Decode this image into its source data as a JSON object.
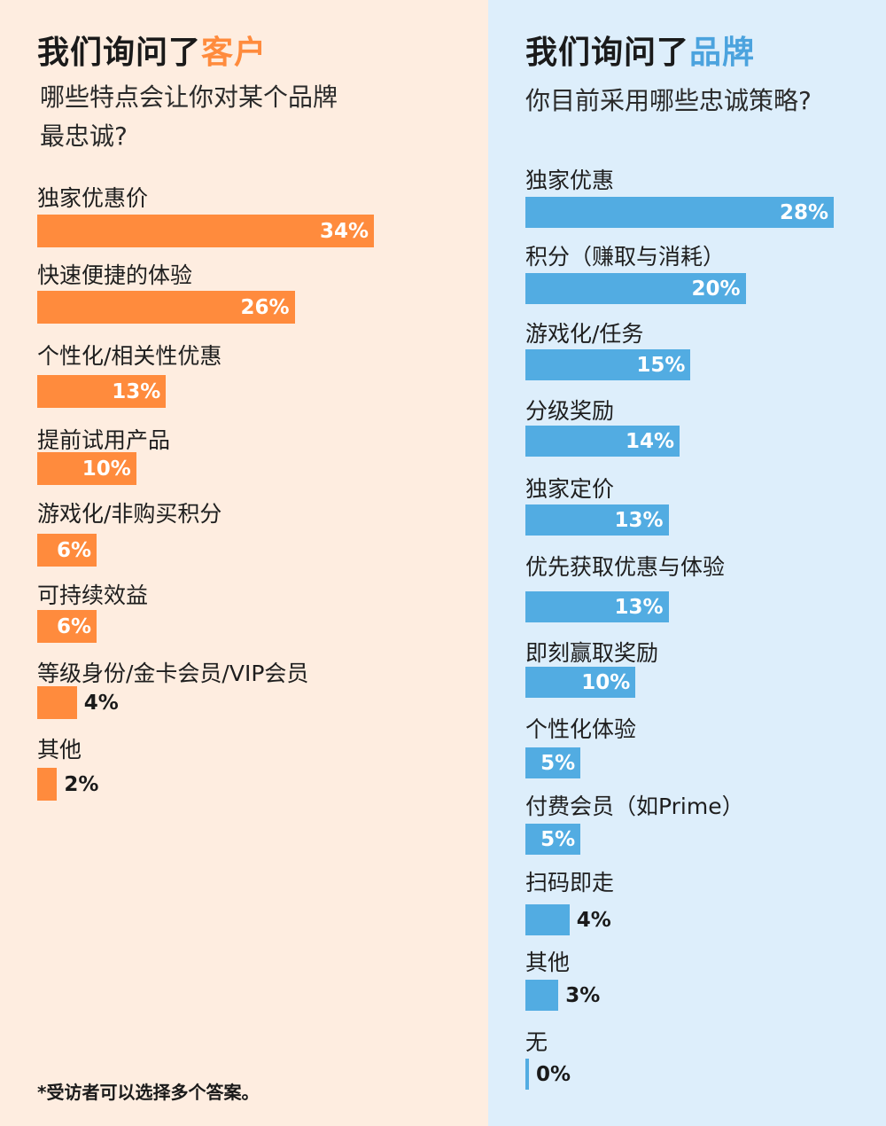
{
  "colors": {
    "left_bar": "#FF8B3D",
    "right_bar": "#52ACE2",
    "left_accent": "#FF8B3D",
    "right_accent": "#4BA3DE"
  },
  "left": {
    "title_main": "我们询问了",
    "title_accent": "客户",
    "subtitle_line1": "哪些特点会让你对某个品牌",
    "subtitle_line2": "最忠诚?"
  },
  "right": {
    "title_main": "我们询问了",
    "title_accent": "品牌",
    "subtitle_line1": "你目前采用哪些忠诚策略?"
  },
  "footnote": "*受访者可以选择多个答案。",
  "chart_data": [
    {
      "type": "bar",
      "orientation": "horizontal",
      "categories": [
        "独家优惠价",
        "快速便捷的体验",
        "个性化/相关性优惠",
        "提前试用产品",
        "游戏化/非购买积分",
        "可持续效益",
        "等级身份/金卡会员/VIP会员",
        "其他"
      ],
      "values": [
        34,
        26,
        13,
        10,
        6,
        6,
        4,
        2
      ],
      "value_labels": [
        "34%",
        "26%",
        "13%",
        "10%",
        "6%",
        "6%",
        "4%",
        "2%"
      ],
      "xlim": [
        0,
        34
      ],
      "grid": false
    },
    {
      "type": "bar",
      "orientation": "horizontal",
      "categories": [
        "独家优惠",
        "积分（赚取与消耗）",
        "游戏化/任务",
        "分级奖励",
        "独家定价",
        "优先获取优惠与体验",
        "即刻赢取奖励",
        "个性化体验",
        "付费会员（如Prime）",
        "扫码即走",
        "其他",
        "无"
      ],
      "values": [
        28,
        20,
        15,
        14,
        13,
        13,
        10,
        5,
        5,
        4,
        3,
        0
      ],
      "value_labels": [
        "28%",
        "20%",
        "15%",
        "14%",
        "13%",
        "13%",
        "10%",
        "5%",
        "5%",
        "4%",
        "3%",
        "0%"
      ],
      "xlim": [
        0,
        28
      ],
      "grid": false
    }
  ]
}
